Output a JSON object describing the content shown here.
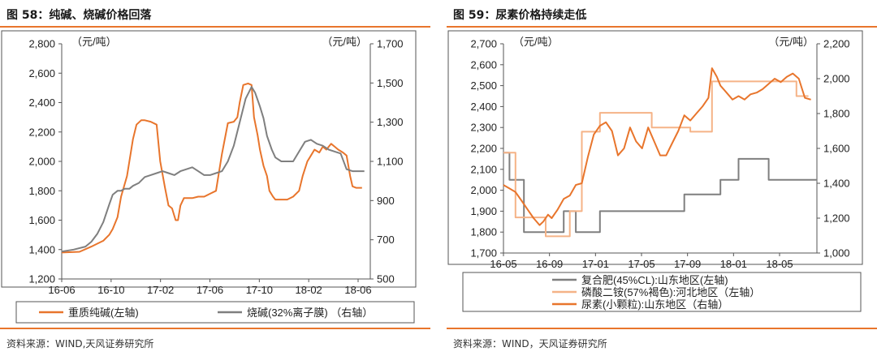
{
  "charts": [
    {
      "title": "图 58：纯碱、烧碱价格回落",
      "source": "资料来源：WIND,天风证券研究所",
      "chart_data": {
        "type": "line",
        "y_left_unit": "（元/吨）",
        "y_right_unit": "（元/吨）",
        "x_ticks": [
          "16-06",
          "16-10",
          "17-02",
          "17-06",
          "17-10",
          "18-02",
          "18-06"
        ],
        "y_left_ticks": [
          "1,200",
          "1,400",
          "1,600",
          "1,800",
          "2,000",
          "2,200",
          "2,400",
          "2,600",
          "2,800"
        ],
        "y_right_ticks": [
          "500",
          "700",
          "900",
          "1,100",
          "1,300",
          "1,500",
          "1,700"
        ],
        "ylim_left": [
          1200,
          2800
        ],
        "ylim_right": [
          500,
          1700
        ],
        "xlim": [
          0,
          26
        ],
        "grid": false,
        "legend_position": "bottom",
        "series": [
          {
            "name": "重质纯碱(左轴)",
            "axis": "left",
            "color": "#e8752c",
            "x": [
              0,
              1.5,
              2.5,
              3,
              3.5,
              4,
              4.3,
              4.7,
              5,
              5.5,
              5.8,
              6,
              6.3,
              6.7,
              7,
              7.5,
              8,
              8.3,
              8.7,
              9,
              9.3,
              9.6,
              9.8,
              10,
              10.3,
              10.7,
              11,
              11.5,
              12,
              12.5,
              13,
              13.5,
              14,
              14.5,
              14.8,
              15,
              15.3,
              15.7,
              16,
              16.2,
              16.5,
              16.7,
              17,
              17.3,
              17.5,
              17.8,
              18,
              18.5,
              19,
              19.5,
              20,
              20.3,
              20.7,
              21,
              21.3,
              21.7,
              22,
              22.3,
              22.7,
              23,
              23.3,
              23.7,
              24,
              24.3,
              24.5,
              24.8,
              25,
              25.3
            ],
            "values": [
              1380,
              1385,
              1420,
              1440,
              1460,
              1500,
              1540,
              1620,
              1760,
              1900,
              2050,
              2150,
              2250,
              2280,
              2280,
              2270,
              2250,
              2000,
              1820,
              1700,
              1680,
              1600,
              1600,
              1700,
              1750,
              1750,
              1750,
              1760,
              1760,
              1780,
              1800,
              2050,
              2260,
              2270,
              2300,
              2400,
              2520,
              2530,
              2520,
              2300,
              2180,
              2080,
              1970,
              1900,
              1800,
              1760,
              1740,
              1740,
              1740,
              1760,
              1800,
              1900,
              2000,
              2040,
              2080,
              2060,
              2100,
              2080,
              2120,
              2100,
              2080,
              2060,
              2040,
              1900,
              1830,
              1820,
              1820,
              1820
            ]
          },
          {
            "name": "烧碱(32%离子膜) （右轴）",
            "axis": "right",
            "color": "#7f7f7f",
            "x": [
              0,
              1,
              2,
              2.5,
              3,
              3.5,
              4,
              4.3,
              4.7,
              5,
              5.3,
              5.7,
              6,
              6.5,
              7,
              7.5,
              8,
              8.5,
              9,
              9.5,
              10,
              10.5,
              11,
              11.5,
              12,
              12.5,
              13,
              13.5,
              14,
              14.5,
              15,
              15.5,
              16,
              16.3,
              16.7,
              17,
              17.3,
              17.7,
              18,
              18.5,
              19,
              19.5,
              20,
              20.5,
              21,
              21.5,
              22,
              22.5,
              23,
              23.5,
              24,
              24.5,
              25,
              25.5
            ],
            "values": [
              640,
              650,
              665,
              690,
              730,
              790,
              880,
              930,
              950,
              950,
              960,
              960,
              975,
              990,
              1020,
              1030,
              1040,
              1050,
              1040,
              1030,
              1050,
              1060,
              1070,
              1050,
              1030,
              1030,
              1040,
              1050,
              1100,
              1180,
              1300,
              1420,
              1480,
              1450,
              1380,
              1320,
              1230,
              1160,
              1120,
              1100,
              1100,
              1100,
              1150,
              1200,
              1210,
              1190,
              1180,
              1160,
              1150,
              1140,
              1060,
              1050,
              1050,
              1050
            ]
          }
        ]
      }
    },
    {
      "title": "图 59：尿素价格持续走低",
      "source": "资料来源：WIND，天风证券研究所",
      "chart_data": {
        "type": "line",
        "y_left_unit": "（元/吨）",
        "y_right_unit": "（元/吨）",
        "x_ticks": [
          "16-05",
          "16-09",
          "17-01",
          "17-05",
          "17-09",
          "18-01",
          "18-05"
        ],
        "y_left_ticks": [
          "1,700",
          "1,800",
          "1,900",
          "2,000",
          "2,100",
          "2,200",
          "2,300",
          "2,400",
          "2,500",
          "2,600",
          "2,700"
        ],
        "y_right_ticks": [
          "1,000",
          "1,200",
          "1,400",
          "1,600",
          "1,800",
          "2,000",
          "2,200"
        ],
        "ylim_left": [
          1700,
          2700
        ],
        "ylim_right": [
          1000,
          2200
        ],
        "xlim": [
          0,
          26
        ],
        "grid": false,
        "legend_position": "bottom",
        "series": [
          {
            "name": "复合肥(45%CL):山东地区(左轴)",
            "axis": "left",
            "color": "#7f7f7f",
            "x": [
              0,
              0.5,
              0.5,
              1.7,
              1.7,
              5,
              5,
              6,
              6,
              8,
              8,
              15,
              15,
              18,
              18,
              19.5,
              19.5,
              22,
              22,
              24,
              24,
              26
            ],
            "values": [
              2180,
              2180,
              2050,
              2050,
              1800,
              1800,
              1900,
              1900,
              1800,
              1800,
              1900,
              1900,
              1980,
              1980,
              2050,
              2050,
              2150,
              2150,
              2050,
              2050,
              2050,
              2050
            ]
          },
          {
            "name": "磷酸二铵(57%褐色):河北地区（左轴）",
            "axis": "left",
            "color": "#f5b387",
            "x": [
              0,
              1,
              1,
              3.5,
              3.5,
              5.5,
              5.5,
              6.5,
              6.5,
              8,
              8,
              12.3,
              12.3,
              15.5,
              15.5,
              17.3,
              17.3,
              24.3,
              24.3,
              24.5,
              24.5,
              25.3
            ],
            "values": [
              2180,
              2180,
              1870,
              1870,
              1780,
              1780,
              1900,
              1900,
              2280,
              2280,
              2370,
              2370,
              2300,
              2300,
              2280,
              2280,
              2520,
              2520,
              2450,
              2450,
              2450,
              2450
            ]
          },
          {
            "name": "尿素(小颗粒):山东地区（右轴）",
            "axis": "right",
            "color": "#e8752c",
            "x": [
              0,
              0.5,
              1,
              1.5,
              2,
              2.5,
              3,
              3.3,
              3.7,
              4,
              4.5,
              5,
              5.5,
              6,
              6.5,
              7,
              7.5,
              8,
              8.5,
              9,
              9.5,
              10,
              10.5,
              11,
              11.5,
              12,
              12.5,
              13,
              13.5,
              14,
              14.5,
              15,
              15.5,
              16,
              16.5,
              17,
              17.3,
              17.7,
              18,
              18.5,
              19,
              19.5,
              20,
              20.5,
              21,
              21.5,
              22,
              22.5,
              23,
              23.5,
              24,
              24.5,
              25,
              25.5
            ],
            "values": [
              1390,
              1370,
              1350,
              1300,
              1250,
              1200,
              1160,
              1180,
              1220,
              1200,
              1250,
              1310,
              1330,
              1390,
              1400,
              1550,
              1680,
              1730,
              1750,
              1700,
              1560,
              1600,
              1720,
              1640,
              1600,
              1720,
              1640,
              1560,
              1560,
              1630,
              1700,
              1790,
              1760,
              1800,
              1840,
              1890,
              2060,
              2010,
              1960,
              1920,
              1880,
              1900,
              1880,
              1910,
              1920,
              1940,
              1970,
              2000,
              1980,
              2010,
              2030,
              2000,
              1890,
              1880
            ]
          }
        ]
      }
    }
  ]
}
